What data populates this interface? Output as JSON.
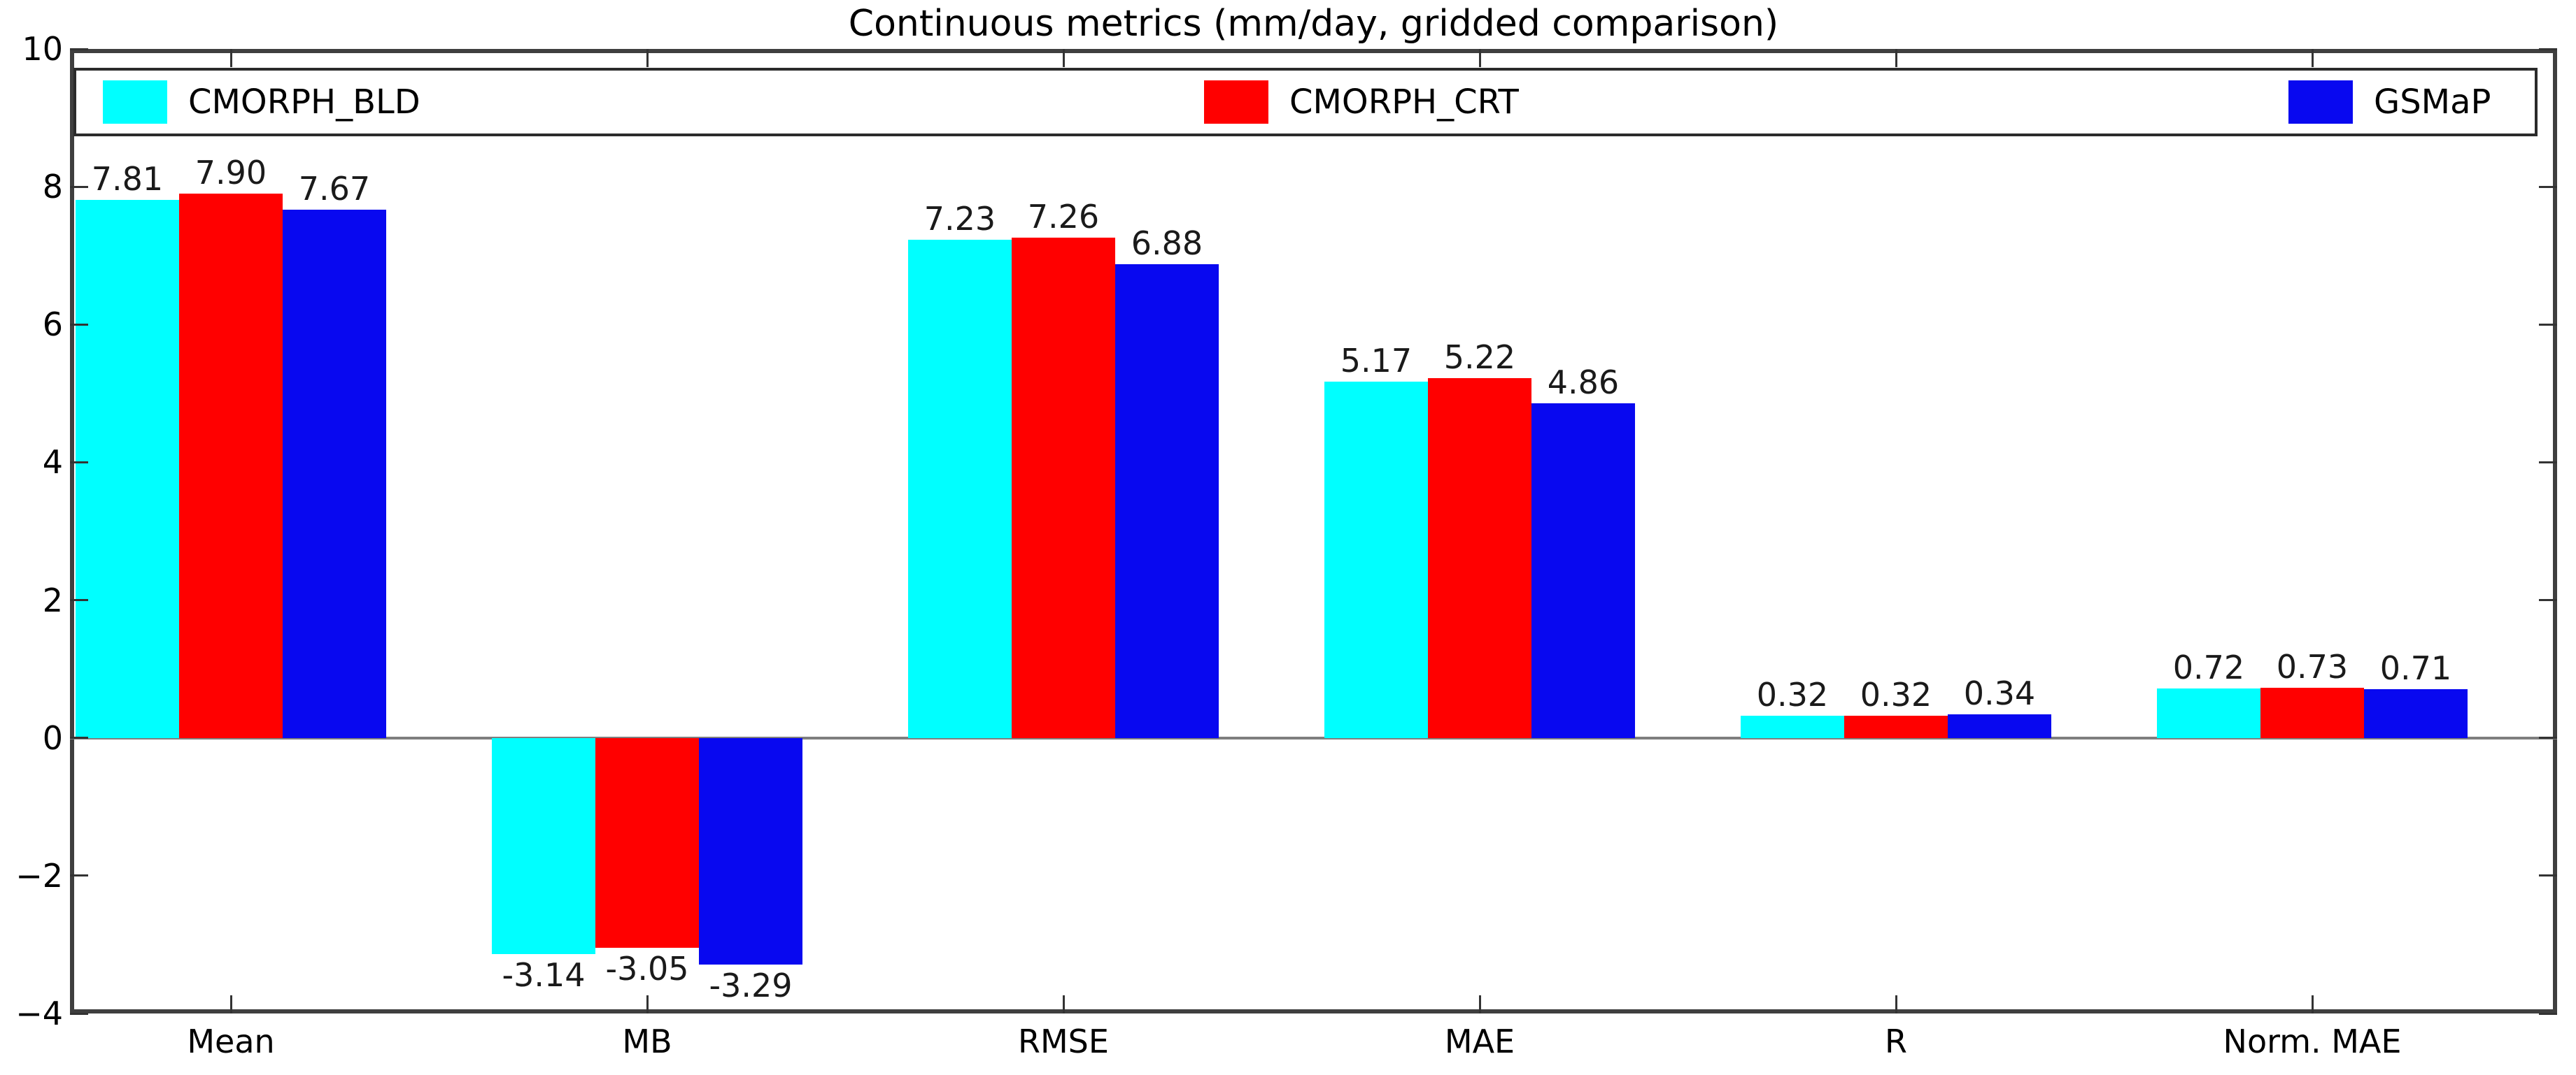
{
  "title": "Continuous metrics (mm/day, gridded comparison)",
  "chart_data": {
    "type": "bar",
    "title": "Continuous metrics (mm/day, gridded comparison)",
    "categories": [
      "Mean",
      "MB",
      "RMSE",
      "MAE",
      "R",
      "Norm. MAE"
    ],
    "series": [
      {
        "name": "CMORPH_BLD",
        "color": "#00ffff",
        "values": [
          7.81,
          -3.14,
          7.23,
          5.17,
          0.32,
          0.72
        ]
      },
      {
        "name": "CMORPH_CRT",
        "color": "#ff0000",
        "values": [
          7.9,
          -3.05,
          7.26,
          5.22,
          0.32,
          0.73
        ]
      },
      {
        "name": "GSMaP",
        "color": "#0808f0",
        "values": [
          7.67,
          -3.29,
          6.88,
          4.86,
          0.34,
          0.71
        ]
      }
    ],
    "value_label_format": "2 decimals, shown above positive bars and below negative bars",
    "xlabel": "",
    "ylabel": "",
    "ylim": [
      -4,
      10
    ],
    "yticks": [
      -4,
      -2,
      0,
      2,
      4,
      6,
      8,
      10
    ],
    "grid": "off",
    "zero_line_color": "#7f7f7f",
    "legend_position": "top inside, single row spread across plot width",
    "legend": [
      {
        "label": "CMORPH_BLD"
      },
      {
        "label": "CMORPH_CRT"
      },
      {
        "label": "GSMaP"
      }
    ]
  }
}
